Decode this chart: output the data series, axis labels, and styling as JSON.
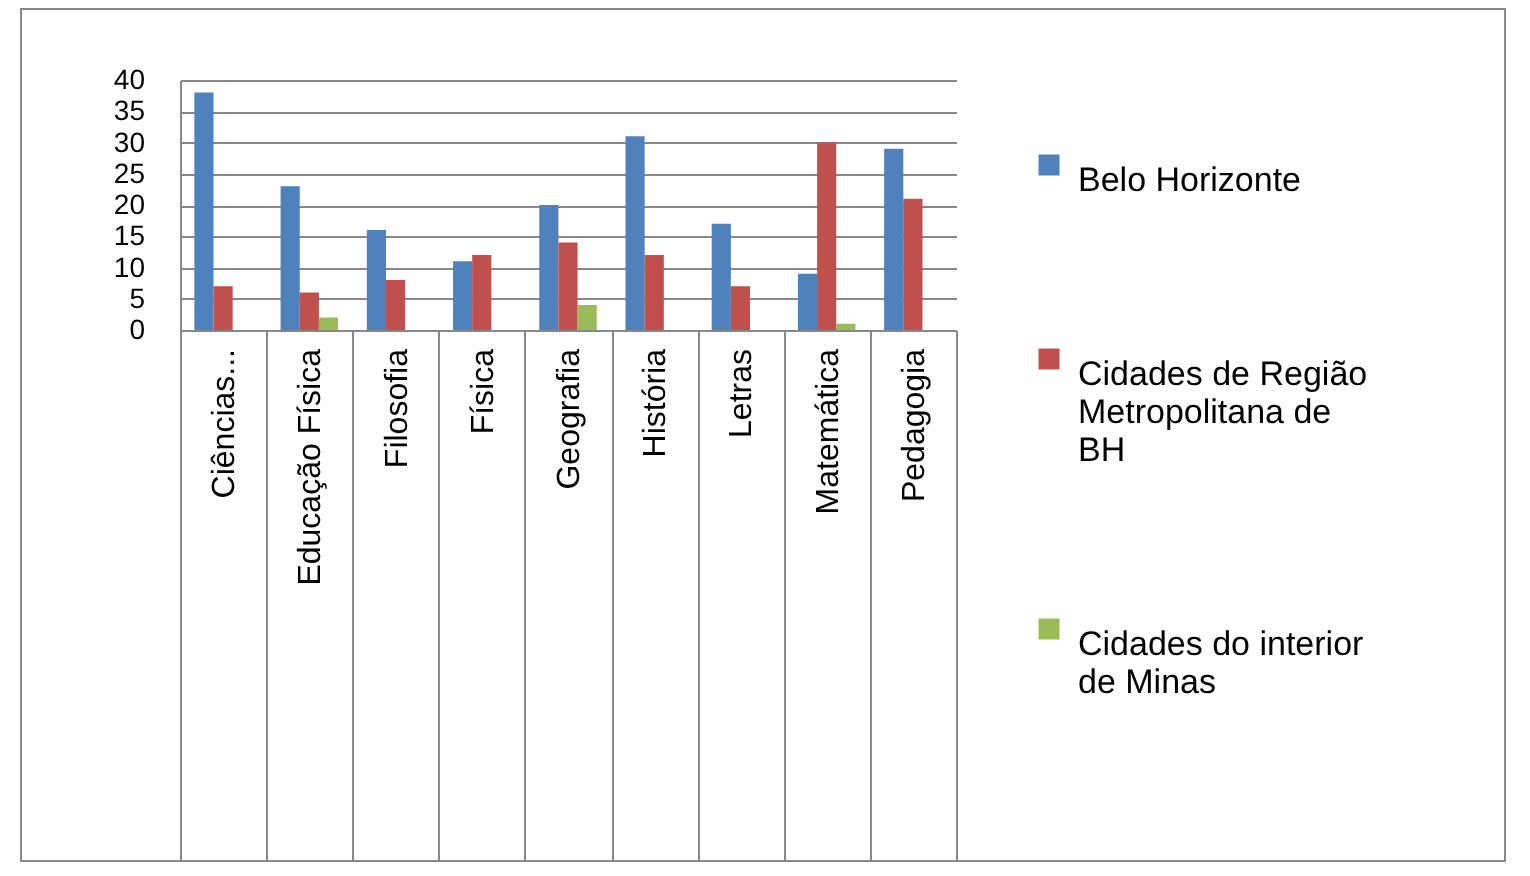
{
  "chart_data": {
    "type": "bar",
    "categories": [
      "Ciências...",
      "Educação Física",
      "Filosofia",
      "Física",
      "Geografia",
      "História",
      "Letras",
      "Matemática",
      "Pedagogia"
    ],
    "series": [
      {
        "name": "Belo Horizonte",
        "color": "#4f81bd",
        "values": [
          38,
          23,
          16,
          11,
          20,
          31,
          17,
          9,
          29
        ]
      },
      {
        "name": "Cidades de Região Metropolitana de BH",
        "color": "#c0504d",
        "values": [
          7,
          6,
          8,
          12,
          14,
          12,
          7,
          30,
          21
        ]
      },
      {
        "name": "Cidades do interior de Minas",
        "color": "#9bbb59",
        "values": [
          null,
          2,
          null,
          null,
          4,
          null,
          null,
          1,
          null
        ]
      }
    ],
    "ylim": [
      0,
      40
    ],
    "yticks": [
      0,
      5,
      10,
      15,
      20,
      25,
      30,
      35,
      40
    ],
    "grid": "y",
    "legend": "right"
  }
}
